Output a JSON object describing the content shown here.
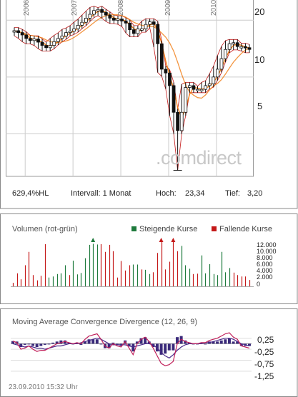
{
  "price_panel": {
    "years": [
      "2006",
      "2007",
      "2008",
      "2009",
      "2010"
    ],
    "y_ticks": [
      "20",
      "10",
      "5"
    ],
    "watermark": ".comdirect",
    "stats": {
      "perf": "629,4%HL",
      "interval": "Intervall: 1 Monat",
      "high_label": "Hoch:",
      "high_value": "23,34",
      "low_label": "Tief:",
      "low_value": "3,20"
    }
  },
  "volume_panel": {
    "title": "Volumen (rot-grün)",
    "legend_up": "Steigende Kurse",
    "legend_down": "Fallende Kurse",
    "y_ticks": [
      "12.000",
      "10.000",
      "8.000",
      "6.000",
      "4.000",
      "2.000",
      "0"
    ]
  },
  "macd_panel": {
    "title": "Moving Average Convergence Divergence (12, 26, 9)",
    "y_ticks": [
      "0,25",
      "-0,25",
      "-0,75",
      "-1,25"
    ],
    "timestamp": "23.09.2010 15:32 Uhr"
  },
  "colors": {
    "up": "#1e7a3c",
    "down": "#c41818",
    "ma": "#f07a10",
    "macd": "#c0205a",
    "signal": "#4a2a8a",
    "hist": "#3a2a7a"
  },
  "chart_data": [
    {
      "type": "line",
      "title": "",
      "x": [
        "2005-10",
        "2005-11",
        "2005-12",
        "2006-01",
        "2006-02",
        "2006-03",
        "2006-04",
        "2006-05",
        "2006-06",
        "2006-07",
        "2006-08",
        "2006-09",
        "2006-10",
        "2006-11",
        "2006-12",
        "2007-01",
        "2007-02",
        "2007-03",
        "2007-04",
        "2007-05",
        "2007-06",
        "2007-07",
        "2007-08",
        "2007-09",
        "2007-10",
        "2007-11",
        "2007-12",
        "2008-01",
        "2008-02",
        "2008-03",
        "2008-04",
        "2008-05",
        "2008-06",
        "2008-07",
        "2008-08",
        "2008-09",
        "2008-10",
        "2008-11",
        "2008-12",
        "2009-01",
        "2009-02",
        "2009-03",
        "2009-04",
        "2009-05",
        "2009-06",
        "2009-07",
        "2009-08",
        "2009-09",
        "2009-10",
        "2009-11",
        "2009-12",
        "2010-01",
        "2010-02",
        "2010-03",
        "2010-04",
        "2010-05",
        "2010-06",
        "2010-07",
        "2010-08",
        "2010-09"
      ],
      "close": [
        17.6,
        17.2,
        16.7,
        16.0,
        15.6,
        15.9,
        15.3,
        14.7,
        14.3,
        14.7,
        15.4,
        16.0,
        16.5,
        17.2,
        17.5,
        18.0,
        18.8,
        19.5,
        20.5,
        21.5,
        22.5,
        22.8,
        22.0,
        21.3,
        20.5,
        20.0,
        20.3,
        19.8,
        19.3,
        17.8,
        17.0,
        18.0,
        18.0,
        19.0,
        19.6,
        19.0,
        15.0,
        11.0,
        10.5,
        9.0,
        6.5,
        5.2,
        6.5,
        8.8,
        9.0,
        8.6,
        8.6,
        8.6,
        9.0,
        9.2,
        10.0,
        11.0,
        12.5,
        14.0,
        15.0,
        15.2,
        14.5,
        14.5,
        14.3,
        14.0
      ],
      "high": 23.34,
      "low": 3.2,
      "y_axis": {
        "scale": "log",
        "ticks": [
          5,
          10,
          20
        ],
        "range": [
          3.0,
          24.5
        ]
      },
      "x_axis_years": [
        "2006",
        "2007",
        "2008",
        "2009",
        "2010"
      ]
    },
    {
      "type": "bar",
      "title": "Volumen (rot-grün)",
      "series": [
        {
          "name": "Steigende Kurse",
          "color": "#1e7a3c"
        },
        {
          "name": "Fallende Kurse",
          "color": "#c41818"
        }
      ],
      "values": [
        1000,
        3700,
        2000,
        6000,
        9800,
        3200,
        1700,
        3000,
        12000,
        2500,
        2800,
        3500,
        3700,
        6000,
        3200,
        7300,
        3400,
        3800,
        8000,
        11800,
        12100,
        11900,
        12000,
        9800,
        11800,
        10000,
        2500,
        7200,
        4500,
        6000,
        6200,
        6200,
        4800,
        4700,
        3500,
        4000,
        9500,
        13000,
        4800,
        7000,
        13100,
        10000,
        11500,
        6000,
        5000,
        3500,
        3600,
        8800,
        3700,
        6300,
        3500,
        3200,
        9800,
        4000,
        5200,
        3900,
        3200,
        2800,
        2800,
        1800
      ],
      "direction": [
        "down",
        "down",
        "down",
        "down",
        "down",
        "down",
        "down",
        "down",
        "down",
        "up",
        "up",
        "up",
        "up",
        "up",
        "down",
        "up",
        "up",
        "up",
        "up",
        "up",
        "up",
        "up",
        "down",
        "down",
        "down",
        "down",
        "down",
        "down",
        "down",
        "down",
        "up",
        "up",
        "down",
        "up",
        "up",
        "down",
        "down",
        "down",
        "down",
        "down",
        "down",
        "down",
        "up",
        "up",
        "up",
        "down",
        "down",
        "up",
        "up",
        "up",
        "up",
        "up",
        "up",
        "up",
        "up",
        "down",
        "down",
        "down",
        "down",
        "down"
      ],
      "y_axis": {
        "ticks": [
          0,
          2000,
          4000,
          6000,
          8000,
          10000,
          12000
        ],
        "range": [
          0,
          13000
        ]
      }
    },
    {
      "type": "line",
      "title": "Moving Average Convergence Divergence (12, 26, 9)",
      "series": [
        {
          "name": "MACD",
          "values": [
            0.12,
            0.05,
            -0.25,
            -0.2,
            -0.1,
            -0.25,
            -0.35,
            -0.3,
            -0.3,
            -0.2,
            -0.1,
            0.0,
            0.05,
            0.1,
            0.05,
            0.0,
            0.05,
            0.0,
            0.2,
            0.35,
            0.4,
            0.45,
            0.2,
            -0.1,
            -0.2,
            0.0,
            -0.1,
            -0.15,
            0.1,
            -0.2,
            -0.5,
            0.0,
            0.2,
            0.3,
            0.1,
            -0.2,
            -0.55,
            -0.9,
            -1.0,
            -0.95,
            -0.8,
            0.0,
            0.2,
            0.1,
            0.05,
            0.0,
            0.0,
            0.05,
            0.05,
            0.15,
            0.2,
            0.25,
            0.35,
            0.45,
            0.5,
            0.3,
            0.2,
            -0.1,
            -0.15,
            -0.2
          ]
        },
        {
          "name": "Signal",
          "values": [
            0.0,
            -0.05,
            -0.1,
            -0.15,
            -0.1,
            -0.15,
            -0.2,
            -0.2,
            -0.25,
            -0.2,
            -0.15,
            -0.1,
            -0.1,
            -0.05,
            0.0,
            0.0,
            0.0,
            0.05,
            0.1,
            0.15,
            0.2,
            0.25,
            0.2,
            0.1,
            0.0,
            -0.05,
            -0.05,
            -0.05,
            -0.05,
            -0.1,
            -0.15,
            -0.1,
            -0.05,
            0.0,
            0.0,
            -0.05,
            -0.2,
            -0.4,
            -0.55,
            -0.65,
            -0.5,
            -0.3,
            -0.15,
            -0.05,
            0.0,
            0.0,
            0.0,
            0.0,
            0.05,
            0.05,
            0.1,
            0.15,
            0.2,
            0.25,
            0.25,
            0.2,
            0.1,
            0.0,
            -0.05,
            -0.1
          ]
        }
      ],
      "y_axis": {
        "ticks": [
          0.25,
          -0.25,
          -0.75,
          -1.25
        ],
        "range": [
          -1.35,
          0.5
        ]
      }
    }
  ]
}
